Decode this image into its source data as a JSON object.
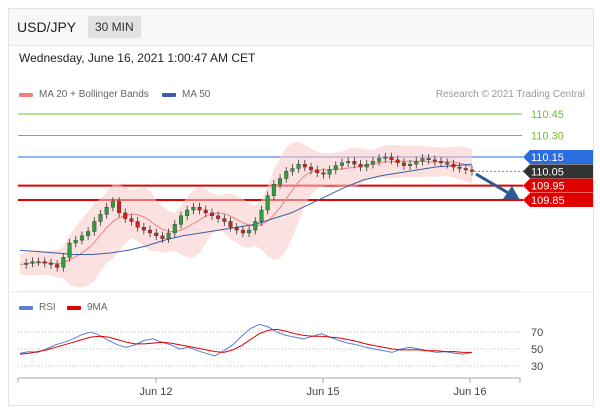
{
  "header": {
    "symbol": "USD/JPY",
    "timeframe": "30 MIN"
  },
  "datetime": "Wednesday, June 16, 2021 1:00:47 AM CET",
  "legend": {
    "bollinger": {
      "label": "MA 20 + Bollinger Bands",
      "color": "#f08080"
    },
    "ma50": {
      "label": "MA 50",
      "color": "#3a5fa8"
    },
    "copyright": "Research © 2021 Trading Central"
  },
  "rsi_legend": {
    "rsi": {
      "label": "RSI",
      "color": "#5b7fd6"
    },
    "ma9": {
      "label": "9MA",
      "color": "#e00000"
    }
  },
  "levels": [
    {
      "value": "110.45",
      "type": "target",
      "color": "#6fbf3a"
    },
    {
      "value": "110.30",
      "type": "target",
      "color": "#6fbf3a"
    },
    {
      "value": "110.15",
      "type": "pivot",
      "color": "#2a6de0"
    },
    {
      "value": "110.05",
      "type": "last",
      "color": "#333333"
    },
    {
      "value": "109.95",
      "type": "support",
      "color": "#e00000"
    },
    {
      "value": "109.85",
      "type": "support",
      "color": "#e00000"
    }
  ],
  "chart_data": [
    {
      "type": "line",
      "title": "USD/JPY",
      "ylim": [
        109.2,
        110.55
      ],
      "x_ticks": [
        "Jun 12",
        "Jun 15",
        "Jun 16"
      ],
      "series": [
        {
          "name": "USD/JPY",
          "style": "candlestick-approx",
          "values": [
            109.4,
            109.41,
            109.42,
            109.42,
            109.41,
            109.4,
            109.38,
            109.45,
            109.55,
            109.57,
            109.6,
            109.63,
            109.7,
            109.75,
            109.8,
            109.84,
            109.76,
            109.72,
            109.7,
            109.66,
            109.64,
            109.62,
            109.6,
            109.58,
            109.62,
            109.68,
            109.74,
            109.78,
            109.8,
            109.78,
            109.76,
            109.74,
            109.72,
            109.7,
            109.66,
            109.64,
            109.62,
            109.64,
            109.7,
            109.78,
            109.88,
            109.96,
            110.0,
            110.05,
            110.07,
            110.1,
            110.08,
            110.06,
            110.04,
            110.03,
            110.06,
            110.09,
            110.11,
            110.12,
            110.1,
            110.08,
            110.1,
            110.12,
            110.14,
            110.15,
            110.13,
            110.11,
            110.09,
            110.1,
            110.12,
            110.14,
            110.13,
            110.12,
            110.11,
            110.1,
            110.08,
            110.07,
            110.06,
            110.05
          ]
        },
        {
          "name": "MA 50",
          "values": [
            109.5,
            109.49,
            109.48,
            109.47,
            109.47,
            109.48,
            109.5,
            109.53,
            109.57,
            109.6,
            109.62,
            109.64,
            109.66,
            109.68,
            109.72,
            109.76,
            109.82,
            109.88,
            109.94,
            109.99,
            110.02,
            110.04,
            110.06,
            110.08,
            110.09,
            110.1
          ]
        }
      ]
    },
    {
      "type": "line",
      "title": "RSI",
      "ylim": [
        20,
        80
      ],
      "y_ticks": [
        30,
        50,
        70
      ],
      "series": [
        {
          "name": "RSI",
          "values": [
            45,
            47,
            46,
            50,
            55,
            58,
            62,
            67,
            70,
            66,
            60,
            55,
            52,
            55,
            60,
            62,
            58,
            55,
            50,
            52,
            48,
            45,
            42,
            48,
            55,
            65,
            74,
            79,
            76,
            70,
            66,
            64,
            62,
            65,
            68,
            64,
            60,
            57,
            55,
            52,
            50,
            48,
            46,
            50,
            52,
            50,
            48,
            46,
            47,
            45,
            44,
            46
          ]
        },
        {
          "name": "9MA",
          "values": [
            44,
            45,
            47,
            49,
            52,
            55,
            58,
            61,
            64,
            65,
            64,
            61,
            58,
            56,
            56,
            57,
            58,
            57,
            55,
            53,
            51,
            49,
            47,
            46,
            49,
            54,
            61,
            68,
            72,
            73,
            71,
            68,
            66,
            65,
            65,
            64,
            63,
            61,
            59,
            56,
            54,
            52,
            50,
            49,
            49,
            49,
            48,
            48,
            47,
            47,
            46,
            46
          ]
        }
      ]
    }
  ]
}
